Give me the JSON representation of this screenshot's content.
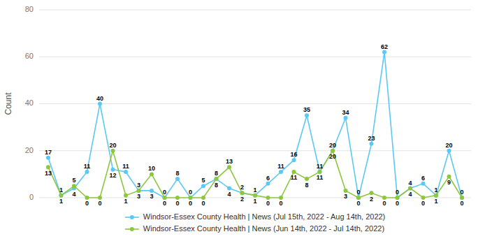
{
  "chart_data": {
    "type": "line",
    "categories": [
      null,
      null,
      null,
      null,
      null,
      null,
      null,
      null,
      null,
      null,
      null,
      null,
      null,
      null,
      null,
      null,
      null,
      null,
      null,
      null,
      null,
      null,
      null,
      null,
      null,
      null,
      null,
      null,
      null,
      null,
      null,
      null,
      null
    ],
    "series": [
      {
        "name": "Windsor-Essex County Health | News (Jul 15th, 2022 - Aug 14th, 2022)",
        "color": "#5bc8f5",
        "marker": "circle",
        "values": [
          17,
          1,
          4,
          11,
          40,
          12,
          11,
          3,
          3,
          0,
          8,
          0,
          5,
          8,
          4,
          2,
          1,
          6,
          11,
          16,
          35,
          11,
          20,
          34,
          0,
          23,
          62,
          0,
          4,
          6,
          1,
          20,
          0
        ]
      },
      {
        "name": "Windsor-Essex County Health | News (Jun 14th, 2022 - Jul 14th, 2022)",
        "color": "#8dc63f",
        "marker": "circle",
        "values": [
          13,
          1,
          5,
          0,
          0,
          20,
          1,
          3,
          10,
          0,
          0,
          0,
          0,
          8,
          13,
          2,
          1,
          0,
          0,
          11,
          8,
          11,
          20,
          3,
          0,
          2,
          0,
          0,
          4,
          0,
          1,
          9,
          0
        ]
      }
    ],
    "ylabel": "Count",
    "ylim": [
      0,
      80
    ],
    "yticks": [
      0,
      20,
      40,
      60,
      80
    ],
    "grid": true,
    "legend": "bottom",
    "data_labels": true,
    "tick_labels": "y"
  }
}
